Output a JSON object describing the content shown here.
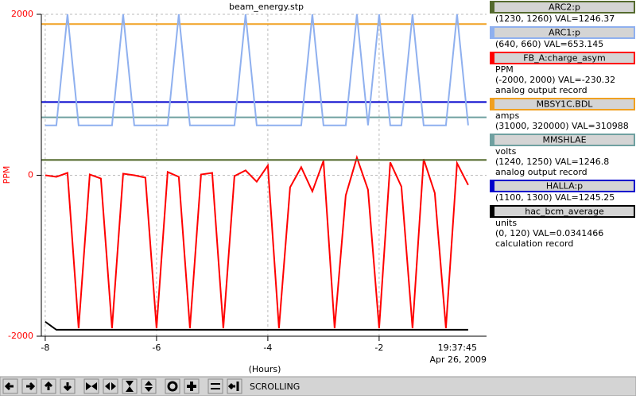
{
  "chart_data": {
    "type": "line",
    "title": "beam_energy.stp",
    "ylabel": "PPM",
    "xlabel": "(Hours)",
    "time_label": "19:37:45",
    "date_label": "Apr 26, 2009",
    "xlim": [
      -8.07,
      -0.07
    ],
    "xticks": [
      -8,
      -6,
      -4,
      -2
    ],
    "ylim": [
      -2000,
      2000
    ],
    "yticks": [
      -2000,
      0,
      2000
    ],
    "grid": true,
    "x": [
      -8.0,
      -7.8,
      -7.6,
      -7.4,
      -7.2,
      -7.0,
      -6.8,
      -6.6,
      -6.4,
      -6.2,
      -6.0,
      -5.8,
      -5.6,
      -5.4,
      -5.2,
      -5.0,
      -4.8,
      -4.6,
      -4.4,
      -4.2,
      -4.0,
      -3.8,
      -3.6,
      -3.4,
      -3.2,
      -3.0,
      -2.8,
      -2.6,
      -2.4,
      -2.2,
      -2.0,
      -1.8,
      -1.6,
      -1.4,
      -1.2,
      -1.0,
      -0.8,
      -0.6,
      -0.4
    ],
    "series": [
      {
        "name": "ARC2:p",
        "color": "#556b2f",
        "details": [
          "(1230, 1260) VAL=1246.37"
        ],
        "x": [
          -8.07,
          -0.07
        ],
        "values": [
          190,
          190
        ]
      },
      {
        "name": "ARC1:p",
        "color": "#8fb0ef",
        "details": [
          "(640, 660) VAL=653.145"
        ],
        "values": [
          620,
          620,
          2000,
          620,
          620,
          620,
          620,
          2000,
          620,
          620,
          620,
          620,
          2000,
          620,
          620,
          620,
          620,
          620,
          2000,
          620,
          620,
          620,
          620,
          620,
          2000,
          620,
          620,
          620,
          2000,
          620,
          2000,
          620,
          620,
          2000,
          620,
          620,
          620,
          2000,
          620
        ]
      },
      {
        "name": "FB_A:charge_asym",
        "color": "#ff0000",
        "details": [
          "PPM",
          "(-2000, 2000) VAL=-230.32",
          "analog output record"
        ],
        "values": [
          0,
          -20,
          30,
          -1900,
          10,
          -40,
          -1900,
          20,
          0,
          -30,
          -1900,
          40,
          -20,
          -1900,
          10,
          30,
          -1900,
          -10,
          60,
          -80,
          120,
          -1900,
          -150,
          100,
          -200,
          180,
          -1900,
          -250,
          220,
          -180,
          -1900,
          160,
          -140,
          -1900,
          200,
          -220,
          -1900,
          150,
          -120
        ]
      },
      {
        "name": "MBSY1C.BDL",
        "color": "#f0a020",
        "details": [
          "amps",
          "(31000, 320000) VAL=310988"
        ],
        "x": [
          -8.07,
          -0.07
        ],
        "values": [
          1880,
          1880
        ]
      },
      {
        "name": "MMSHLAE",
        "color": "#6fa0a0",
        "details": [
          "volts",
          "(1240, 1250)  VAL=1246.8",
          "analog output record"
        ],
        "x": [
          -8.07,
          -0.07
        ],
        "values": [
          720,
          720
        ]
      },
      {
        "name": "HALLA:p",
        "color": "#0000cc",
        "details": [
          "(1100, 1300) VAL=1245.25"
        ],
        "x": [
          -8.07,
          -0.07
        ],
        "values": [
          910,
          910
        ]
      },
      {
        "name": "hac_bcm_average",
        "color": "#000000",
        "details": [
          "units",
          "(0, 120) VAL=0.0341466",
          "calculation record"
        ],
        "values": [
          -1820,
          -1920,
          -1920,
          -1920,
          -1920,
          -1920,
          -1920,
          -1920,
          -1920,
          -1920,
          -1920,
          -1920,
          -1920,
          -1920,
          -1920,
          -1920,
          -1920,
          -1920,
          -1920,
          -1920,
          -1920,
          -1920,
          -1920,
          -1920,
          -1920,
          -1920,
          -1920,
          -1920,
          -1920,
          -1920,
          -1920,
          -1920,
          -1920,
          -1920,
          -1920,
          -1920,
          -1920,
          -1920,
          -1920
        ]
      }
    ]
  },
  "toolbar": {
    "status": "SCROLLING"
  }
}
